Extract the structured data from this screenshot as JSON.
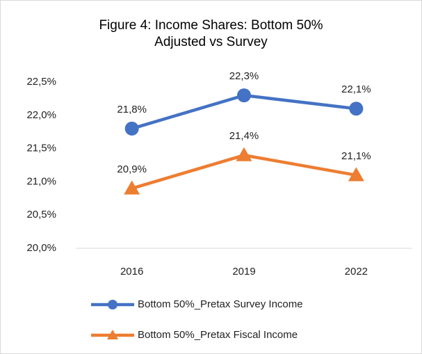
{
  "chart_data": {
    "type": "line",
    "title": "Figure 4: Income Shares: Bottom 50% Adjusted vs Survey",
    "categories": [
      "2016",
      "2019",
      "2022"
    ],
    "series": [
      {
        "name": "Bottom 50%_Pretax Survey Income",
        "color": "#4472c4",
        "marker": "circle",
        "values": [
          21.8,
          22.3,
          22.1
        ],
        "value_labels": [
          "21,8%",
          "22,3%",
          "22,1%"
        ]
      },
      {
        "name": "Bottom 50%_Pretax Fiscal Income",
        "color": "#ed7d31",
        "marker": "triangle",
        "values": [
          20.9,
          21.4,
          21.1
        ],
        "value_labels": [
          "20,9%",
          "21,4%",
          "21,1%"
        ]
      }
    ],
    "ylim": [
      20.0,
      22.5
    ],
    "yticks": [
      {
        "value": 20.0,
        "label": "20,0%"
      },
      {
        "value": 20.5,
        "label": "20,5%"
      },
      {
        "value": 21.0,
        "label": "21,0%"
      },
      {
        "value": 21.5,
        "label": "21,5%"
      },
      {
        "value": 22.0,
        "label": "22,0%"
      },
      {
        "value": 22.5,
        "label": "22,5%"
      }
    ],
    "grid": false,
    "legend": "bottom"
  }
}
